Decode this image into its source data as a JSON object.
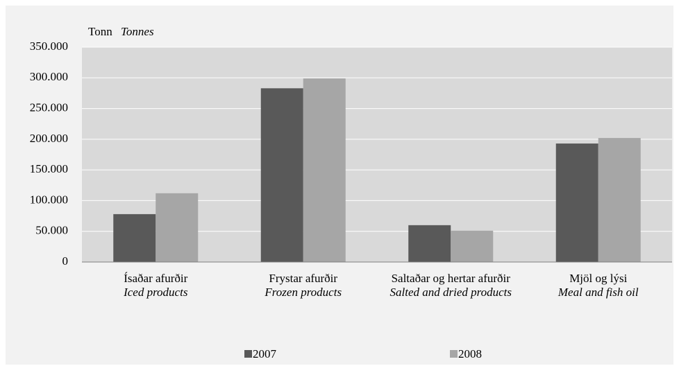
{
  "chart_data": {
    "type": "bar",
    "y_label": "Tonn",
    "y_label_en": "Tonnes",
    "categories": [
      "Ísaðar afurðir",
      "Frystar afurðir",
      "Saltaðar og hertar afurðir",
      "Mjöl og lýsi"
    ],
    "categories_en": [
      "Iced products",
      "Frozen products",
      "Salted and dried products",
      "Meal and fish oil"
    ],
    "series": [
      {
        "name": "2007",
        "color": "#595959",
        "values": [
          78000,
          283000,
          60000,
          193000
        ]
      },
      {
        "name": "2008",
        "color": "#a6a6a6",
        "values": [
          112000,
          299000,
          51000,
          202000
        ]
      }
    ],
    "ylim": [
      0,
      350000
    ],
    "yticks": [
      0,
      {
        "value": 50000,
        "label": "50.000"
      },
      {
        "value": 100000,
        "label": "100.000"
      },
      {
        "value": 150000,
        "label": "150.000"
      },
      {
        "value": 200000,
        "label": "200.000"
      },
      {
        "value": 250000,
        "label": "250.000"
      },
      {
        "value": 300000,
        "label": "300.000"
      },
      {
        "value": 350000,
        "label": "350.000"
      }
    ],
    "grid": true
  }
}
